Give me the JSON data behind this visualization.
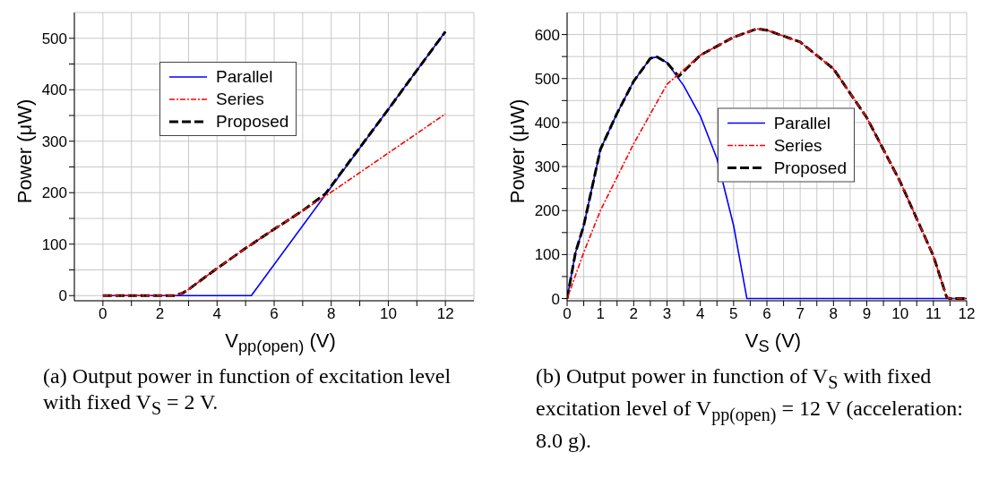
{
  "chart_data": [
    {
      "type": "line",
      "xlabel": "V$_{pp(open)}$ (V)",
      "ylabel": "Power (μW)",
      "xlim": [
        -1,
        13
      ],
      "xticks": [
        0,
        {
          "value": 1,
          "label": null
        },
        2,
        {
          "value": 3,
          "label": null
        },
        4,
        {
          "value": 5,
          "label": null
        },
        6,
        {
          "value": 7,
          "label": null
        },
        8,
        {
          "value": 9,
          "label": null
        },
        10,
        {
          "value": 11,
          "label": null
        },
        12
      ],
      "ylim": [
        -10,
        550
      ],
      "yticks": [
        0,
        {
          "value": 50,
          "label": null
        },
        100,
        {
          "value": 150,
          "label": null
        },
        200,
        {
          "value": 250,
          "label": null
        },
        300,
        {
          "value": 350,
          "label": null
        },
        400,
        {
          "value": 450,
          "label": null
        },
        500
      ],
      "grid": true,
      "legend": "top left",
      "series": [
        {
          "name": "Parallel",
          "color": "#0000ff",
          "line_style": "solid",
          "x": [
            0,
            5.2,
            12
          ],
          "values": [
            0,
            0,
            513
          ]
        },
        {
          "name": "Series",
          "color": "#ff0000",
          "line_style": "dashdot",
          "x": [
            0,
            2.5,
            2.8,
            3,
            4,
            5,
            6,
            7,
            8,
            10,
            12
          ],
          "values": [
            0,
            0,
            5,
            12,
            53,
            92,
            129,
            165,
            201,
            277,
            353
          ]
        },
        {
          "name": "Proposed",
          "color": "#000000",
          "line_style": "dashed",
          "x": [
            0,
            2.5,
            2.8,
            3,
            4,
            5,
            6,
            7,
            7.8,
            8,
            10,
            12
          ],
          "values": [
            0,
            0,
            5,
            12,
            53,
            92,
            129,
            165,
            198,
            213,
            362,
            513
          ]
        }
      ],
      "annotations": [
        "(a) Output power in function of excitation level with fixed V$_{S}$ = 2 V."
      ]
    },
    {
      "type": "line",
      "xlabel": "V$_{S}$ (V)",
      "ylabel": "Power (μW)",
      "xlim": [
        0,
        12
      ],
      "xticks": [
        0,
        {
          "value": 0.5,
          "label": null
        },
        1,
        {
          "value": 1.5,
          "label": null
        },
        2,
        {
          "value": 2.5,
          "label": null
        },
        3,
        {
          "value": 3.5,
          "label": null
        },
        4,
        {
          "value": 4.5,
          "label": null
        },
        5,
        {
          "value": 5.5,
          "label": null
        },
        6,
        {
          "value": 6.5,
          "label": null
        },
        7,
        {
          "value": 7.5,
          "label": null
        },
        8,
        {
          "value": 8.5,
          "label": null
        },
        9,
        {
          "value": 9.5,
          "label": null
        },
        10,
        {
          "value": 10.5,
          "label": null
        },
        11,
        {
          "value": 11.5,
          "label": null
        },
        12
      ],
      "ylim": [
        -5,
        650
      ],
      "yticks": [
        0,
        {
          "value": 50,
          "label": null
        },
        100,
        {
          "value": 150,
          "label": null
        },
        200,
        {
          "value": 250,
          "label": null
        },
        300,
        {
          "value": 350,
          "label": null
        },
        400,
        {
          "value": 450,
          "label": null
        },
        500,
        {
          "value": 550,
          "label": null
        },
        600
      ],
      "grid": true,
      "legend": "right",
      "series": [
        {
          "name": "Parallel",
          "color": "#0000ff",
          "line_style": "solid",
          "x": [
            0,
            0.25,
            0.5,
            1,
            1.5,
            2,
            2.5,
            2.7,
            3,
            3.5,
            4,
            4.5,
            5,
            5.4,
            12
          ],
          "values": [
            0,
            104,
            166,
            339,
            421,
            494,
            546,
            549,
            536,
            484,
            415,
            318,
            166,
            0,
            0
          ]
        },
        {
          "name": "Series",
          "color": "#ff0000",
          "line_style": "dashdot",
          "x": [
            0,
            0.5,
            1,
            2,
            3,
            4,
            5,
            5.7,
            6,
            7,
            8,
            9,
            10,
            11,
            11.4,
            11.5,
            12
          ],
          "values": [
            0,
            105,
            200,
            352,
            487,
            553,
            594,
            613,
            610,
            583,
            522,
            411,
            266,
            97,
            3,
            0,
            0
          ]
        },
        {
          "name": "Proposed",
          "color": "#000000",
          "line_style": "dashed",
          "x": [
            0,
            0.25,
            0.5,
            1,
            1.5,
            2,
            2.5,
            2.7,
            3,
            3.35,
            4,
            5,
            5.7,
            6,
            7,
            8,
            9,
            10,
            11,
            11.4,
            11.5,
            12
          ],
          "values": [
            0,
            104,
            166,
            339,
            421,
            494,
            546,
            549,
            536,
            505,
            553,
            594,
            613,
            610,
            583,
            522,
            411,
            266,
            97,
            3,
            0,
            0
          ]
        }
      ],
      "annotations": [
        "(b) Output power in function of V$_{S}$ with fixed excitation level of V$_{pp(open)}$ = 12 V (acceleration: 8.0 g)."
      ]
    }
  ]
}
